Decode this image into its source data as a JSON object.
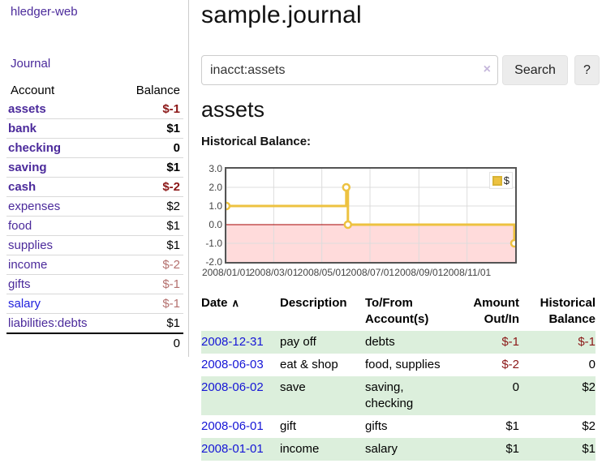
{
  "app": {
    "brand": "hledger-web"
  },
  "sidebar": {
    "journal_link": "Journal",
    "accounts": {
      "header_account": "Account",
      "header_balance": "Balance",
      "rows": [
        {
          "name": "assets",
          "indent": 1,
          "bold": true,
          "balance": "$-1",
          "negative": true,
          "link_color": "purple"
        },
        {
          "name": "bank",
          "indent": 2,
          "bold": true,
          "balance": "$1",
          "negative": false,
          "link_color": "purple"
        },
        {
          "name": "checking",
          "indent": 3,
          "bold": true,
          "balance": "0",
          "negative": false,
          "link_color": "purple"
        },
        {
          "name": "saving",
          "indent": 3,
          "bold": true,
          "balance": "$1",
          "negative": false,
          "link_color": "purple"
        },
        {
          "name": "cash",
          "indent": 2,
          "bold": true,
          "balance": "$-2",
          "negative": true,
          "link_color": "purple"
        },
        {
          "name": "expenses",
          "indent": 1,
          "bold": false,
          "balance": "$2",
          "negative": false,
          "link_color": "purple"
        },
        {
          "name": "food",
          "indent": 2,
          "bold": false,
          "balance": "$1",
          "negative": false,
          "link_color": "purple"
        },
        {
          "name": "supplies",
          "indent": 2,
          "bold": false,
          "balance": "$1",
          "negative": false,
          "link_color": "purple"
        },
        {
          "name": "income",
          "indent": 1,
          "bold": false,
          "balance": "$-2",
          "negative": true,
          "link_color": "purple"
        },
        {
          "name": "gifts",
          "indent": 2,
          "bold": false,
          "balance": "$-1",
          "negative": true,
          "link_color": "purple"
        },
        {
          "name": "salary",
          "indent": 2,
          "bold": false,
          "balance": "$-1",
          "negative": true,
          "link_color": "blue"
        },
        {
          "name": "liabilities:debts",
          "indent": 1,
          "bold": false,
          "balance": "$1",
          "negative": false,
          "link_color": "purple"
        }
      ],
      "total": "0"
    }
  },
  "main": {
    "title": "sample.journal",
    "search": {
      "value": "inacct:assets",
      "clear_icon": "×",
      "search_button": "Search",
      "help_button": "?"
    },
    "account_heading": "assets",
    "chart_heading": "Historical Balance:"
  },
  "chart_data": {
    "type": "line",
    "step": true,
    "title": "Historical Balance",
    "series": [
      {
        "name": "$",
        "color": "#edc240",
        "points": [
          {
            "date": "2008-01-01",
            "value": 1
          },
          {
            "date": "2008-06-01",
            "value": 2
          },
          {
            "date": "2008-06-03",
            "value": 0
          },
          {
            "date": "2008-12-31",
            "value": -1
          }
        ]
      }
    ],
    "x_domain": [
      "2008-01-01",
      "2009-01-01"
    ],
    "x_ticks": [
      {
        "date": "2008-01-01",
        "label": "2008/01/01"
      },
      {
        "date": "2008-03-01",
        "label": "2008/03/01"
      },
      {
        "date": "2008-05-01",
        "label": "2008/05/01"
      },
      {
        "date": "2008-07-01",
        "label": "2008/07/01"
      },
      {
        "date": "2008-09-01",
        "label": "2008/09/01"
      },
      {
        "date": "2008-11-01",
        "label": "2008/11/01"
      }
    ],
    "y_ticks": [
      {
        "value": 3,
        "label": "3.0"
      },
      {
        "value": 2,
        "label": "2.0"
      },
      {
        "value": 1,
        "label": "1.0"
      },
      {
        "value": 0,
        "label": "0.0"
      },
      {
        "value": -1,
        "label": "-1.0"
      },
      {
        "value": -2,
        "label": "-2.0"
      }
    ],
    "ylim": [
      -2,
      3
    ],
    "grid": true,
    "legend": {
      "label": "$",
      "position": "top-right"
    },
    "colors": {
      "grid": "#dcdcdc",
      "negative_region": "#ffdbdb",
      "zero_line": "#a40000",
      "border": "#545454"
    }
  },
  "register": {
    "headers": {
      "date": "Date",
      "sort_icon": "∧",
      "description": "Description",
      "accounts": "To/From Account(s)",
      "amount": "Amount Out/In",
      "balance": "Historical Balance"
    },
    "rows": [
      {
        "date": "2008-12-31",
        "description": "pay off",
        "accounts": "debts",
        "amount": "$-1",
        "amount_negative": true,
        "balance": "$-1",
        "balance_negative": true,
        "stripe": true
      },
      {
        "date": "2008-06-03",
        "description": "eat & shop",
        "accounts": "food, supplies",
        "amount": "$-2",
        "amount_negative": true,
        "balance": "0",
        "balance_negative": false,
        "stripe": false
      },
      {
        "date": "2008-06-02",
        "description": "save",
        "accounts": "saving, checking",
        "amount": "0",
        "amount_negative": false,
        "balance": "$2",
        "balance_negative": false,
        "stripe": true
      },
      {
        "date": "2008-06-01",
        "description": "gift",
        "accounts": "gifts",
        "amount": "$1",
        "amount_negative": false,
        "balance": "$2",
        "balance_negative": false,
        "stripe": false
      },
      {
        "date": "2008-01-01",
        "description": "income",
        "accounts": "salary",
        "amount": "$1",
        "amount_negative": false,
        "balance": "$1",
        "balance_negative": false,
        "stripe": true
      }
    ]
  }
}
